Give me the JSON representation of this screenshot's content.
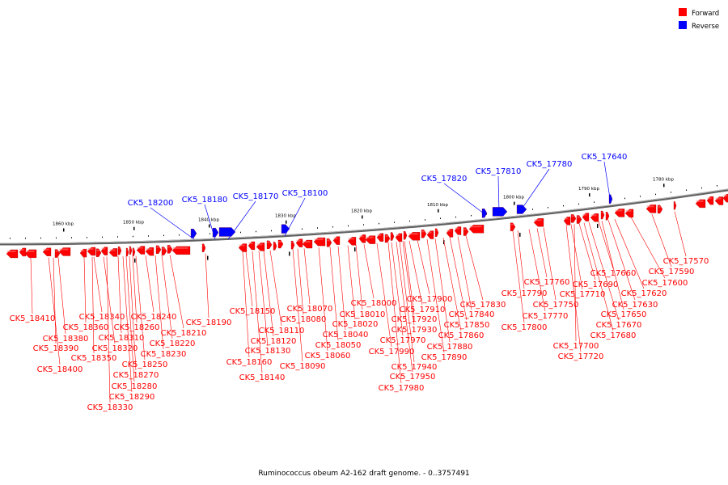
{
  "caption": "Ruminococcus obeum A2-162 draft genome. - 0..3757491",
  "legend": [
    {
      "label": "Forward",
      "color": "#ff0000"
    },
    {
      "label": "Reverse",
      "color": "#0000ff"
    }
  ],
  "colors": {
    "forward": "#ff0000",
    "reverse": "#0000ff",
    "backbone": "#808080"
  },
  "ticks": [
    "1860 kbp",
    "1850 kbp",
    "1840 kbp",
    "1830 kbp",
    "1820 kbp",
    "1810 kbp",
    "1800 kbp",
    "1790 kbp",
    "1780 kbp"
  ],
  "reverse_genes": [
    "CK5_18200",
    "CK5_18180",
    "CK5_18170",
    "CK5_18100",
    "CK5_17820",
    "CK5_17810",
    "CK5_17780",
    "CK5_17640"
  ],
  "forward_genes": [
    "CK5_18410",
    "CK5_18400",
    "CK5_18390",
    "CK5_18380",
    "CK5_18360",
    "CK5_18350",
    "CK5_18340",
    "CK5_18330",
    "CK5_18320",
    "CK5_18310",
    "CK5_18290",
    "CK5_18280",
    "CK5_18270",
    "CK5_18260",
    "CK5_18250",
    "CK5_18240",
    "CK5_18230",
    "CK5_18220",
    "CK5_18210",
    "CK5_18190",
    "CK5_18160",
    "CK5_18150",
    "CK5_18140",
    "CK5_18130",
    "CK5_18120",
    "CK5_18110",
    "CK5_18090",
    "CK5_18080",
    "CK5_18070",
    "CK5_18060",
    "CK5_18050",
    "CK5_18040",
    "CK5_18020",
    "CK5_18010",
    "CK5_18000",
    "CK5_17990",
    "CK5_17980",
    "CK5_17970",
    "CK5_17950",
    "CK5_17940",
    "CK5_17930",
    "CK5_17920",
    "CK5_17910",
    "CK5_17900",
    "CK5_17890",
    "CK5_17880",
    "CK5_17860",
    "CK5_17850",
    "CK5_17840",
    "CK5_17830",
    "CK5_17800",
    "CK5_17790",
    "CK5_17770",
    "CK5_17760",
    "CK5_17750",
    "CK5_17720",
    "CK5_17710",
    "CK5_17700",
    "CK5_17690",
    "CK5_17680",
    "CK5_17670",
    "CK5_17660",
    "CK5_17650",
    "CK5_17630",
    "CK5_17620",
    "CK5_17600",
    "CK5_17590",
    "CK5_17570"
  ]
}
